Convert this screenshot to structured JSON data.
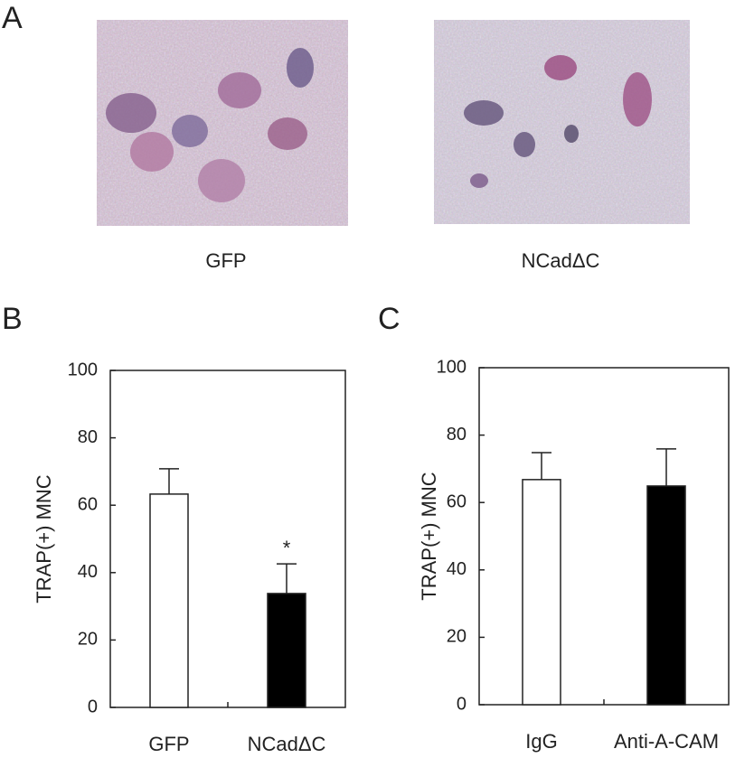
{
  "panel_a": {
    "label": "A",
    "images": [
      {
        "caption": "GFP"
      },
      {
        "caption": "NCadΔC"
      }
    ]
  },
  "chart_data": [
    {
      "type": "bar",
      "label": "B",
      "ylabel": "TRAP(+) MNC",
      "categories": [
        "GFP",
        "NCadΔC"
      ],
      "values": [
        63.3,
        33.8
      ],
      "errors": [
        7.5,
        8.8
      ],
      "colors": [
        "#ffffff",
        "#000000"
      ],
      "ylim": [
        0,
        100
      ],
      "yticks": [
        0,
        20,
        40,
        60,
        80,
        100
      ],
      "annotations": [
        {
          "category": "NCadΔC",
          "text": "*"
        }
      ]
    },
    {
      "type": "bar",
      "label": "C",
      "ylabel": "TRAP(+) MNC",
      "categories": [
        "IgG",
        "Anti-A-CAM"
      ],
      "values": [
        66.8,
        64.9
      ],
      "errors": [
        8,
        11
      ],
      "colors": [
        "#ffffff",
        "#000000"
      ],
      "ylim": [
        0,
        100
      ],
      "yticks": [
        0,
        20,
        40,
        60,
        80,
        100
      ]
    }
  ]
}
